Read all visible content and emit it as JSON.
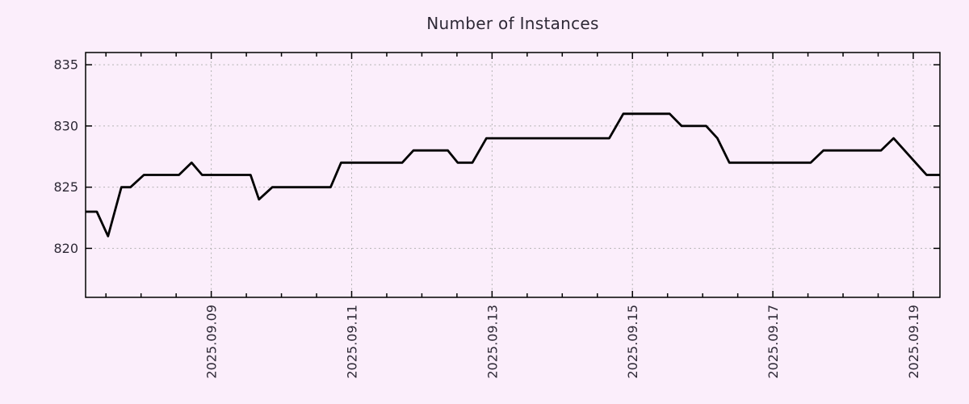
{
  "page": {
    "background": "#fbeefb"
  },
  "chart_data": {
    "type": "line",
    "title": "Number of Instances",
    "xlabel": "",
    "ylabel": "",
    "legend_position": "none",
    "x_unit": "day of September 2025 (fractional)",
    "series": [
      {
        "name": "instances",
        "x": [
          7.21,
          7.37,
          7.53,
          7.72,
          7.85,
          8.04,
          8.54,
          8.72,
          8.87,
          9.56,
          9.68,
          9.87,
          10.7,
          10.85,
          11.72,
          11.88,
          12.37,
          12.51,
          12.72,
          12.92,
          14.67,
          14.87,
          15.53,
          15.7,
          16.05,
          16.21,
          16.38,
          17.54,
          17.72,
          18.54,
          18.72,
          19.19,
          19.38
        ],
        "values": [
          823,
          823,
          821,
          825,
          825,
          826,
          826,
          827,
          826,
          826,
          824,
          825,
          825,
          827,
          827,
          828,
          828,
          827,
          827,
          829,
          829,
          831,
          831,
          830,
          830,
          829,
          827,
          827,
          828,
          828,
          829,
          826,
          826
        ]
      }
    ],
    "xlim": [
      7.21,
      19.38
    ],
    "ylim": [
      816,
      836
    ],
    "y_ticks": [
      820,
      825,
      830,
      835
    ],
    "x_ticks": [
      {
        "day": 9,
        "label": "2025.09.09"
      },
      {
        "day": 11,
        "label": "2025.09.11"
      },
      {
        "day": 13,
        "label": "2025.09.13"
      },
      {
        "day": 15,
        "label": "2025.09.15"
      },
      {
        "day": 17,
        "label": "2025.09.17"
      },
      {
        "day": 19,
        "label": "2025.09.19"
      }
    ],
    "x_minor_tick_step": 0.5,
    "grid": "dotted lines at major ticks, ticks mirrored inward on all four sides",
    "colors": {
      "background": "#fbeefb",
      "line": "#000000",
      "grid": "#b3b3b3",
      "axis": "#000000",
      "text": "#2e2936"
    }
  }
}
